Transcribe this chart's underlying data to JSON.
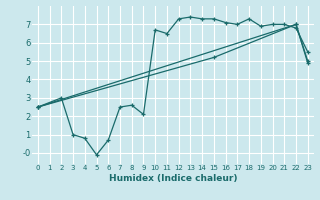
{
  "title": "",
  "xlabel": "Humidex (Indice chaleur)",
  "bg_color": "#cce8ed",
  "grid_color": "#ffffff",
  "line_color": "#1a6b6b",
  "xlim": [
    -0.5,
    23.5
  ],
  "ylim": [
    -0.6,
    8.0
  ],
  "xticks": [
    0,
    1,
    2,
    3,
    4,
    5,
    6,
    7,
    8,
    9,
    10,
    11,
    12,
    13,
    14,
    15,
    16,
    17,
    18,
    19,
    20,
    21,
    22,
    23
  ],
  "yticks": [
    0,
    1,
    2,
    3,
    4,
    5,
    6,
    7
  ],
  "ytick_labels": [
    "-0",
    "1",
    "2",
    "3",
    "4",
    "5",
    "6",
    "7"
  ],
  "line1_x": [
    0,
    2,
    3,
    4,
    5,
    6,
    7,
    8,
    9,
    10,
    11,
    12,
    13,
    14,
    15,
    16,
    17,
    18,
    19,
    20,
    21,
    22,
    23
  ],
  "line1_y": [
    2.5,
    3.0,
    1.0,
    0.8,
    -0.1,
    0.7,
    2.5,
    2.6,
    2.1,
    6.7,
    6.5,
    7.3,
    7.4,
    7.3,
    7.3,
    7.1,
    7.0,
    7.3,
    6.9,
    7.0,
    7.0,
    6.8,
    5.5
  ],
  "line2_x": [
    0,
    22,
    23
  ],
  "line2_y": [
    2.5,
    7.0,
    4.9
  ],
  "line3_x": [
    0,
    15,
    22,
    23
  ],
  "line3_y": [
    2.5,
    5.2,
    7.0,
    5.0
  ]
}
